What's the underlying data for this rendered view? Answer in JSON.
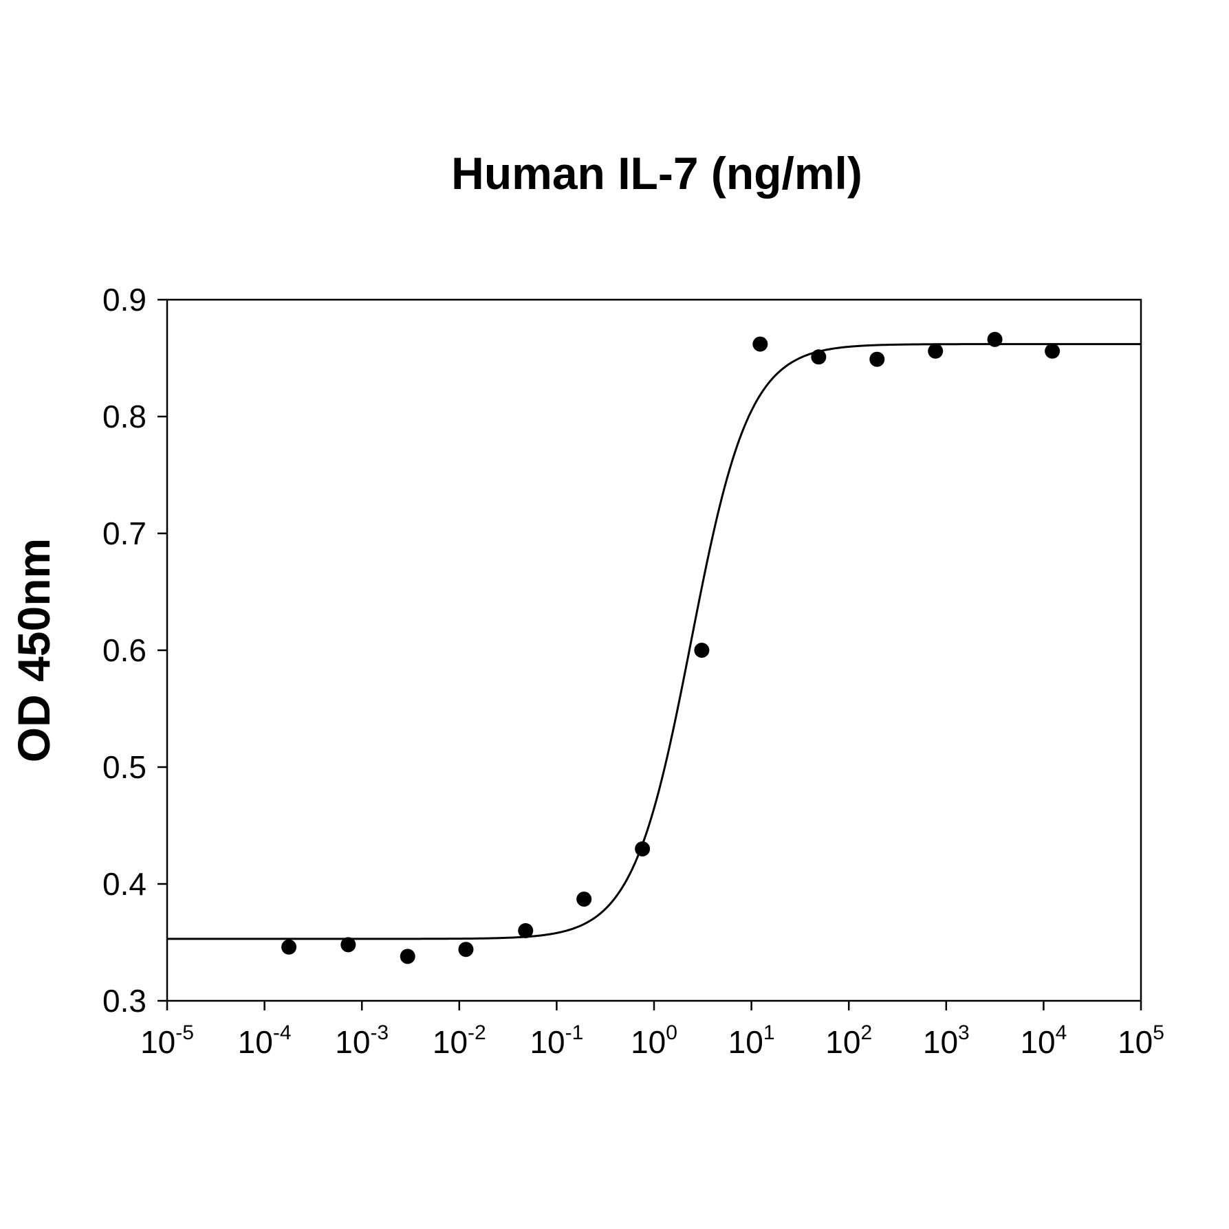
{
  "chart_data": {
    "type": "scatter",
    "title": "Human IL-7 (ng/ml)",
    "xlabel": "",
    "ylabel": "OD 450nm",
    "x_scale": "log",
    "xlim": [
      1e-05,
      100000
    ],
    "ylim": [
      0.3,
      0.9
    ],
    "x_ticks": [
      1e-05,
      0.0001,
      0.001,
      0.01,
      0.1,
      1,
      10,
      100,
      1000,
      10000,
      100000
    ],
    "x_tick_labels": [
      {
        "base": "10",
        "exp": "-5"
      },
      {
        "base": "10",
        "exp": "-4"
      },
      {
        "base": "10",
        "exp": "-3"
      },
      {
        "base": "10",
        "exp": "-2"
      },
      {
        "base": "10",
        "exp": "-1"
      },
      {
        "base": "10",
        "exp": "0"
      },
      {
        "base": "10",
        "exp": "1"
      },
      {
        "base": "10",
        "exp": "2"
      },
      {
        "base": "10",
        "exp": "3"
      },
      {
        "base": "10",
        "exp": "4"
      },
      {
        "base": "10",
        "exp": "5"
      }
    ],
    "y_ticks": [
      0.3,
      0.4,
      0.5,
      0.6,
      0.7,
      0.8,
      0.9
    ],
    "y_tick_labels": [
      "0.3",
      "0.4",
      "0.5",
      "0.6",
      "0.7",
      "0.8",
      "0.9"
    ],
    "grid": false,
    "legend": "none",
    "series": [
      {
        "type": "scatter",
        "color": "#000000",
        "x": [
          0.000178,
          0.000724,
          0.00295,
          0.0117,
          0.048,
          0.191,
          0.76,
          3.09,
          12.3,
          49,
          195,
          776,
          3160,
          12300
        ],
        "y": [
          0.346,
          0.348,
          0.338,
          0.344,
          0.36,
          0.387,
          0.43,
          0.6,
          0.862,
          0.851,
          0.849,
          0.856,
          0.866,
          0.856
        ]
      },
      {
        "type": "line",
        "color": "#000000",
        "model": "four-parameter logistic",
        "bottom": 0.353,
        "top": 0.862,
        "ec50": 2.4,
        "hill": 1.45
      }
    ]
  }
}
